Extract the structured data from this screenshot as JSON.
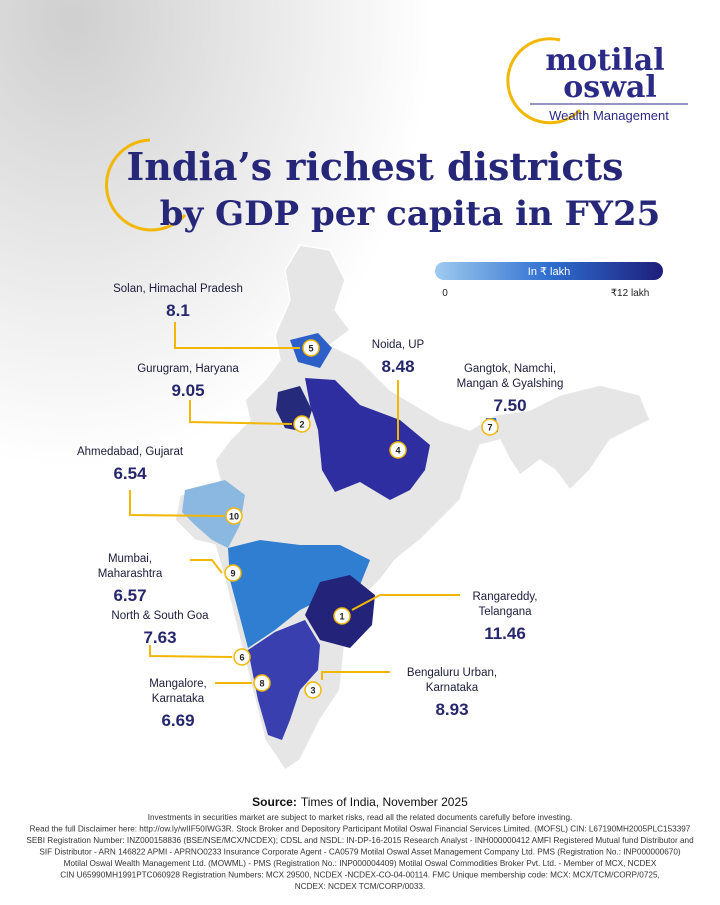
{
  "brand": {
    "line1": "motilal",
    "line2": "oswal",
    "tagline": "Wealth Management"
  },
  "title": {
    "line1": "India’s richest districts",
    "line2": "by GDP per capita in FY25"
  },
  "legend": {
    "label": "In ₹ lakh",
    "min": "0",
    "max": "₹12 lakh"
  },
  "districts": [
    {
      "rank": "5",
      "name": [
        "Solan, Himachal Pradesh"
      ],
      "value": "8.1"
    },
    {
      "rank": "2",
      "name": [
        "Gurugram, Haryana"
      ],
      "value": "9.05"
    },
    {
      "rank": "4",
      "name": [
        "Noida, UP"
      ],
      "value": "8.48"
    },
    {
      "rank": "7",
      "name": [
        "Gangtok, Namchi,",
        "Mangan & Gyalshing"
      ],
      "value": "7.50"
    },
    {
      "rank": "10",
      "name": [
        "Ahmedabad, Gujarat"
      ],
      "value": "6.54"
    },
    {
      "rank": "9",
      "name": [
        "Mumbai,",
        "Maharashtra"
      ],
      "value": "6.57"
    },
    {
      "rank": "1",
      "name": [
        "Rangareddy,",
        "Telangana"
      ],
      "value": "11.46"
    },
    {
      "rank": "6",
      "name": [
        "North & South Goa"
      ],
      "value": "7.63"
    },
    {
      "rank": "3",
      "name": [
        "Bengaluru Urban,",
        "Karnataka"
      ],
      "value": "8.93"
    },
    {
      "rank": "8",
      "name": [
        "Mangalore,",
        "Karnataka"
      ],
      "value": "6.69"
    }
  ],
  "source": {
    "label": "Source:",
    "text": "Times of India, November 2025"
  },
  "disclaimer": [
    "Investments in securities market are subject to market risks, read all the related documents carefully before investing.",
    "Read the full Disclaimer here: http://ow.ly/wIIF50IWG3R. Stock Broker and Depository Participant Motilal Oswal Financial Services Limited. (MOFSL) CIN: L67190MH2005PLC153397",
    "SEBI Registration Number: INZ000158836 (BSE/NSE/MCX/NCDEX); CDSL and NSDL: IN-DP-16-2015 Research Analyst - INH000000412 AMFI Registered Mutual fund Distributor and",
    "SIF Distributor - ARN 146822 APMI - APRNO0233 Insurance Corporate Agent - CA0579 Motilal Oswal Asset Management Company Ltd. PMS (Registration No.: INP000000670)",
    "Motilal Oswal Wealth Management Ltd. (MOWML) - PMS (Registration No.: INP000004409) Motilal Oswal Commodities Broker Pvt. Ltd. - Member of MCX, NCDEX",
    "CIN U65990MH1991PTC060928 Registration Numbers: MCX 29500, NCDEX -NCDEX-CO-04-00114. FMC Unique membership code: MCX: MCX/TCM/CORP/0725,",
    "NCDEX: NCDEX TCM/CORP/0033."
  ]
}
